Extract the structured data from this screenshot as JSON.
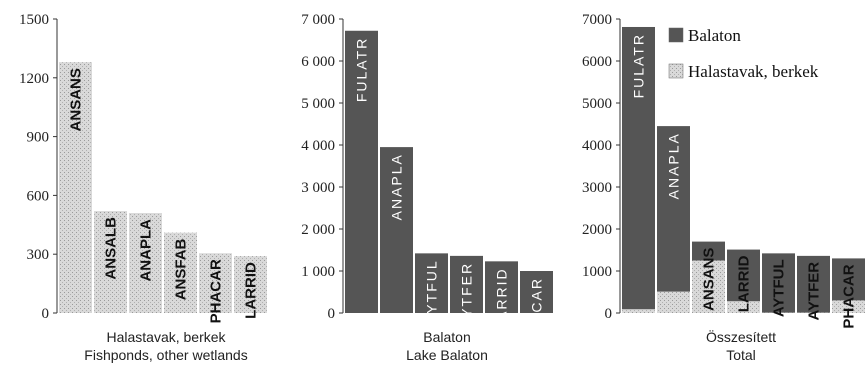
{
  "colors": {
    "balaton": "#555555",
    "halastavak": "#d6d6d6"
  },
  "legend": {
    "position": "top-right",
    "items": [
      "Balaton",
      "Halastavak, berkek"
    ]
  },
  "chart_data": [
    {
      "type": "bar",
      "xlabel": "Halastavak, berkek",
      "xlabel2": "Fishponds, other wetlands",
      "ylim": [
        0,
        1500
      ],
      "yticks": [
        0,
        300,
        600,
        900,
        1200,
        1500
      ],
      "ytick_labels": [
        "0",
        "300",
        "600",
        "900",
        "1200",
        "1500"
      ],
      "categories": [
        "ANSANS",
        "ANSALB",
        "ANAPLA",
        "ANSFAB",
        "PHACAR",
        "LARRID"
      ],
      "series": [
        {
          "key": "halastavak",
          "values": [
            1280,
            520,
            510,
            410,
            305,
            290
          ]
        }
      ]
    },
    {
      "type": "bar",
      "xlabel": "Balaton",
      "xlabel2": "Lake Balaton",
      "ylim": [
        0,
        7000
      ],
      "yticks": [
        0,
        1000,
        2000,
        3000,
        4000,
        5000,
        6000,
        7000
      ],
      "ytick_labels": [
        "0",
        "1 000",
        "2 000",
        "3 000",
        "4 000",
        "5 000",
        "6 000",
        "7 000"
      ],
      "categories": [
        "FULATR",
        "ANAPLA",
        "AYTFUL",
        "AYTFER",
        "LARRID",
        "PHACAR"
      ],
      "series": [
        {
          "key": "balaton",
          "values": [
            6720,
            3950,
            1420,
            1360,
            1230,
            1000
          ]
        }
      ]
    },
    {
      "type": "bar",
      "stacked": true,
      "xlabel": "Összesített",
      "xlabel2": "Total",
      "ylim": [
        0,
        7000
      ],
      "yticks": [
        0,
        1000,
        2000,
        3000,
        4000,
        5000,
        6000,
        7000
      ],
      "ytick_labels": [
        "0",
        "1000",
        "2000",
        "3000",
        "4000",
        "5000",
        "6000",
        "7000"
      ],
      "categories": [
        "FULATR",
        "ANAPLA",
        "ANSANS",
        "LARRID",
        "AYTFUL",
        "AYTFER",
        "PHACAR"
      ],
      "series": [
        {
          "key": "halastavak",
          "values": [
            90,
            510,
            1250,
            280,
            10,
            10,
            300
          ]
        },
        {
          "key": "balaton",
          "values": [
            6720,
            3940,
            450,
            1230,
            1410,
            1350,
            1000
          ]
        }
      ]
    }
  ]
}
